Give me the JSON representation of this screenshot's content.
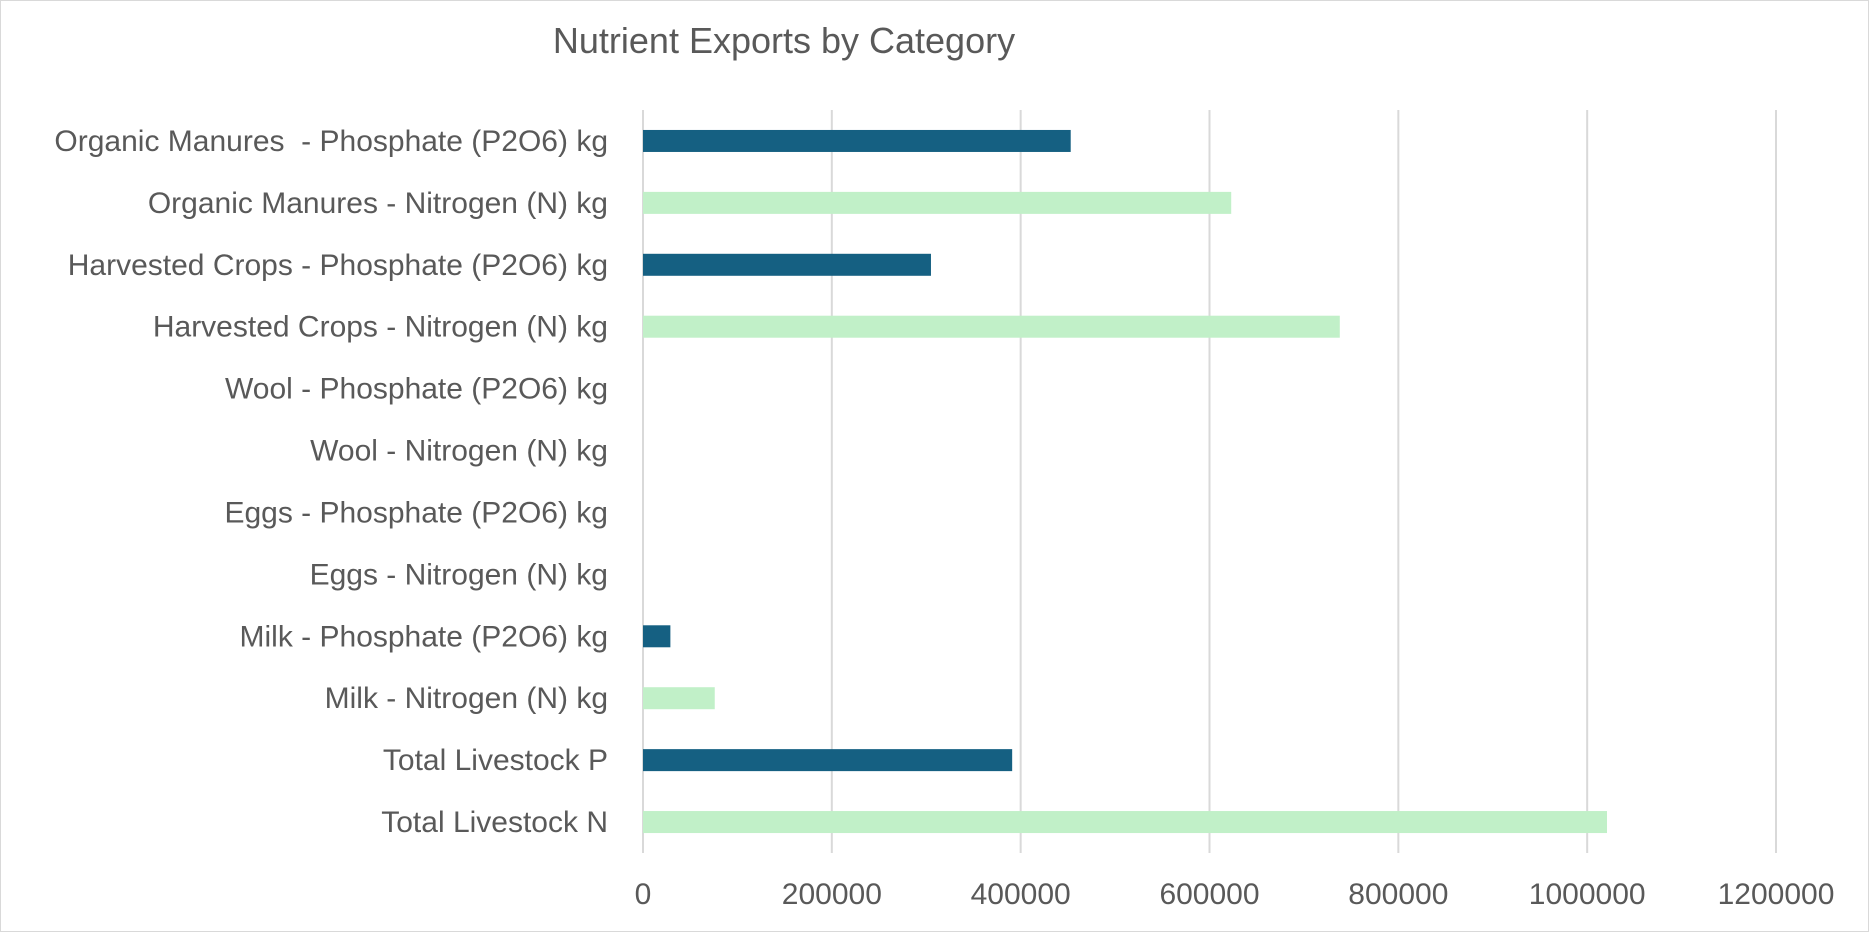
{
  "chart_data": {
    "type": "bar",
    "orientation": "horizontal",
    "title": "Nutrient Exports by Category",
    "xlabel": "",
    "ylabel": "",
    "xlim": [
      0,
      1200000
    ],
    "x_ticks": [
      "0",
      "200000",
      "400000",
      "600000",
      "800000",
      "1000000",
      "1200000"
    ],
    "grid": true,
    "legend": "none",
    "categories": [
      "Organic Manures  - Phosphate (P2O6) kg",
      "Organic Manures - Nitrogen (N) kg",
      "Harvested Crops - Phosphate (P2O6) kg",
      "Harvested Crops - Nitrogen (N) kg",
      "Wool - Phosphate (P2O6) kg",
      "Wool - Nitrogen (N) kg",
      "Eggs - Phosphate (P2O6) kg",
      "Eggs - Nitrogen (N) kg",
      "Milk - Phosphate (P2O6) kg",
      "Milk - Nitrogen (N) kg",
      "Total Livestock P",
      "Total Livestock N"
    ],
    "values": [
      453000,
      623000,
      305000,
      738000,
      0,
      0,
      0,
      0,
      29000,
      76000,
      391000,
      1021000
    ],
    "colors": {
      "phosphate": "#156082",
      "nitrogen": "#c1f0c8",
      "grid": "#d9d9d9",
      "text": "#595959"
    },
    "bar_color_pattern": [
      "phosphate",
      "nitrogen",
      "phosphate",
      "nitrogen",
      "phosphate",
      "nitrogen",
      "phosphate",
      "nitrogen",
      "phosphate",
      "nitrogen",
      "phosphate",
      "nitrogen"
    ]
  }
}
